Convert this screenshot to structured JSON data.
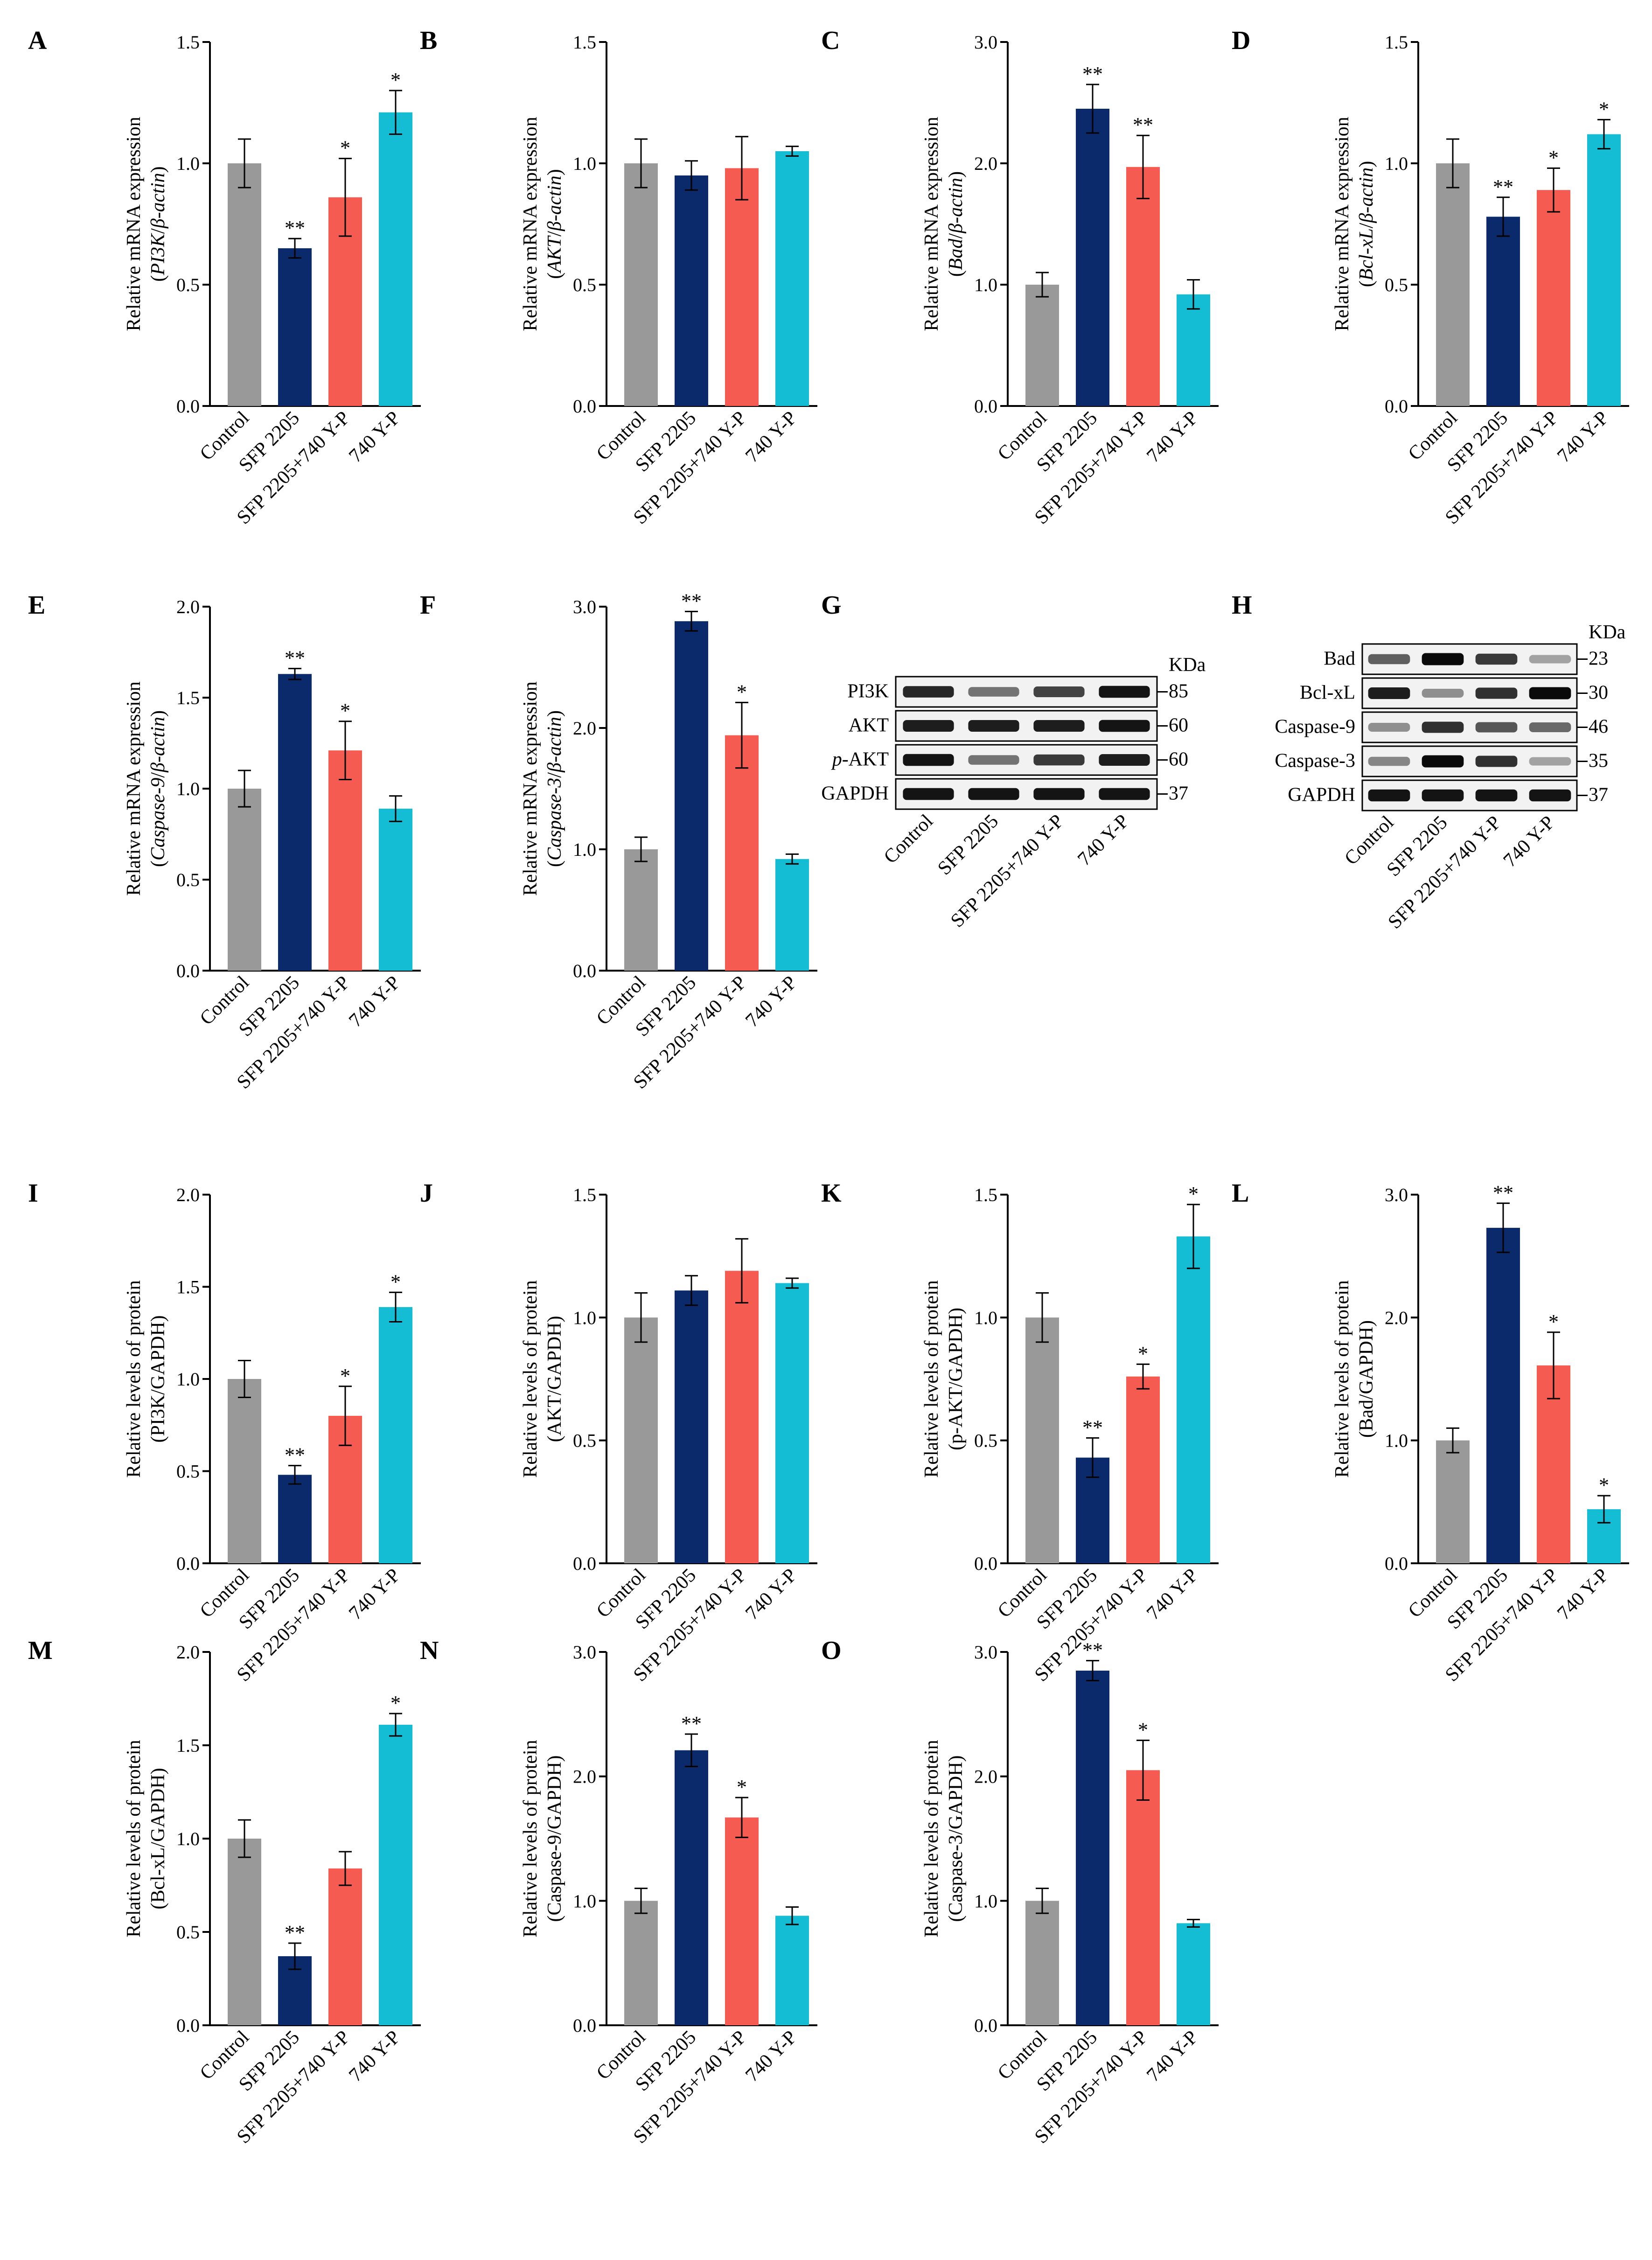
{
  "colors": {
    "Control": "#999999",
    "SFP 2205": "#0b2a6b",
    "SFP 2205+740 Y-P": "#f55b51",
    "740 Y-P": "#14bcd4",
    "axis": "#000000"
  },
  "categories": [
    "Control",
    "SFP 2205",
    "SFP 2205+740 Y-P",
    "740 Y-P"
  ],
  "chart_data": [
    {
      "id": "A",
      "type": "bar",
      "ylabel_line1": "Relative mRNA expression",
      "ylabel_line2": "(PI3K/β-actin)",
      "ylim": [
        0,
        1.5
      ],
      "ticks": [
        "0.0",
        "0.5",
        "1.0",
        "1.5"
      ],
      "categories": [
        "Control",
        "SFP 2205",
        "SFP 2205+740 Y-P",
        "740 Y-P"
      ],
      "values": [
        1.0,
        0.65,
        0.86,
        1.21
      ],
      "errors": [
        0.1,
        0.04,
        0.16,
        0.09
      ],
      "sig": [
        "",
        "**",
        "*",
        "*"
      ]
    },
    {
      "id": "B",
      "type": "bar",
      "ylabel_line1": "Relative mRNA expression",
      "ylabel_line2": "(AKT/β-actin)",
      "ylim": [
        0,
        1.5
      ],
      "ticks": [
        "0.0",
        "0.5",
        "1.0",
        "1.5"
      ],
      "categories": [
        "Control",
        "SFP 2205",
        "SFP 2205+740 Y-P",
        "740 Y-P"
      ],
      "values": [
        1.0,
        0.95,
        0.98,
        1.05
      ],
      "errors": [
        0.1,
        0.06,
        0.13,
        0.02
      ],
      "sig": [
        "",
        "",
        "",
        ""
      ]
    },
    {
      "id": "C",
      "type": "bar",
      "ylabel_line1": "Relative mRNA expression",
      "ylabel_line2": "(Bad/β-actin)",
      "ylim": [
        0,
        3.0
      ],
      "ticks": [
        "0.0",
        "1.0",
        "2.0",
        "3.0"
      ],
      "categories": [
        "Control",
        "SFP 2205",
        "SFP 2205+740 Y-P",
        "740 Y-P"
      ],
      "values": [
        1.0,
        2.45,
        1.97,
        0.92
      ],
      "errors": [
        0.1,
        0.2,
        0.26,
        0.12
      ],
      "sig": [
        "",
        "**",
        "**",
        ""
      ]
    },
    {
      "id": "D",
      "type": "bar",
      "ylabel_line1": "Relative mRNA expression",
      "ylabel_line2": "(Bcl-xL/β-actin)",
      "ylim": [
        0,
        1.5
      ],
      "ticks": [
        "0.0",
        "0.5",
        "1.0",
        "1.5"
      ],
      "categories": [
        "Control",
        "SFP 2205",
        "SFP 2205+740 Y-P",
        "740 Y-P"
      ],
      "values": [
        1.0,
        0.78,
        0.89,
        1.12
      ],
      "errors": [
        0.1,
        0.08,
        0.09,
        0.06
      ],
      "sig": [
        "",
        "**",
        "*",
        "*"
      ]
    },
    {
      "id": "E",
      "type": "bar",
      "ylabel_line1": "Relative mRNA expression",
      "ylabel_line2": "(Caspase-9/β-actin)",
      "ylim": [
        0,
        2.0
      ],
      "ticks": [
        "0.0",
        "0.5",
        "1.0",
        "1.5",
        "2.0"
      ],
      "categories": [
        "Control",
        "SFP 2205",
        "SFP 2205+740 Y-P",
        "740 Y-P"
      ],
      "values": [
        1.0,
        1.63,
        1.21,
        0.89
      ],
      "errors": [
        0.1,
        0.03,
        0.16,
        0.07
      ],
      "sig": [
        "",
        "**",
        "*",
        ""
      ]
    },
    {
      "id": "F",
      "type": "bar",
      "ylabel_line1": "Relative mRNA expression",
      "ylabel_line2": "(Caspase-3/β-actin)",
      "ylim": [
        0,
        3.0
      ],
      "ticks": [
        "0.0",
        "1.0",
        "2.0",
        "3.0"
      ],
      "categories": [
        "Control",
        "SFP 2205",
        "SFP 2205+740 Y-P",
        "740 Y-P"
      ],
      "values": [
        1.0,
        2.88,
        1.94,
        0.92
      ],
      "errors": [
        0.1,
        0.08,
        0.27,
        0.04
      ],
      "sig": [
        "",
        "**",
        "*",
        ""
      ]
    },
    {
      "id": "I",
      "type": "bar",
      "ylabel_line1": "Relative levels of protein",
      "ylabel_line2": "(PI3K/GAPDH)",
      "ylim": [
        0,
        2.0
      ],
      "ticks": [
        "0.0",
        "0.5",
        "1.0",
        "1.5",
        "2.0"
      ],
      "categories": [
        "Control",
        "SFP 2205",
        "SFP 2205+740 Y-P",
        "740 Y-P"
      ],
      "values": [
        1.0,
        0.48,
        0.8,
        1.39
      ],
      "errors": [
        0.1,
        0.05,
        0.16,
        0.08
      ],
      "sig": [
        "",
        "**",
        "*",
        "*"
      ]
    },
    {
      "id": "J",
      "type": "bar",
      "ylabel_line1": "Relative levels of protein",
      "ylabel_line2": "(AKT/GAPDH)",
      "ylim": [
        0,
        1.5
      ],
      "ticks": [
        "0.0",
        "0.5",
        "1.0",
        "1.5"
      ],
      "categories": [
        "Control",
        "SFP 2205",
        "SFP 2205+740 Y-P",
        "740 Y-P"
      ],
      "values": [
        1.0,
        1.11,
        1.19,
        1.14
      ],
      "errors": [
        0.1,
        0.06,
        0.13,
        0.02
      ],
      "sig": [
        "",
        "",
        "",
        ""
      ]
    },
    {
      "id": "K",
      "type": "bar",
      "ylabel_line1": "Relative levels of protein",
      "ylabel_line2": "(p-AKT/GAPDH)",
      "ylim": [
        0,
        1.5
      ],
      "ticks": [
        "0.0",
        "0.5",
        "1.0",
        "1.5"
      ],
      "categories": [
        "Control",
        "SFP 2205",
        "SFP 2205+740 Y-P",
        "740 Y-P"
      ],
      "values": [
        1.0,
        0.43,
        0.76,
        1.33
      ],
      "errors": [
        0.1,
        0.08,
        0.05,
        0.13
      ],
      "sig": [
        "",
        "**",
        "*",
        "*"
      ]
    },
    {
      "id": "L",
      "type": "bar",
      "ylabel_line1": "Relative levels of protein",
      "ylabel_line2": "(Bad/GAPDH)",
      "ylim": [
        0,
        3.0
      ],
      "ticks": [
        "0.0",
        "1.0",
        "2.0",
        "3.0"
      ],
      "categories": [
        "Control",
        "SFP 2205",
        "SFP 2205+740 Y-P",
        "740 Y-P"
      ],
      "values": [
        1.0,
        2.73,
        1.61,
        0.44
      ],
      "errors": [
        0.1,
        0.2,
        0.27,
        0.11
      ],
      "sig": [
        "",
        "**",
        "*",
        "*"
      ]
    },
    {
      "id": "M",
      "type": "bar",
      "ylabel_line1": "Relative levels of protein",
      "ylabel_line2": "(Bcl-xL/GAPDH)",
      "ylim": [
        0,
        2.0
      ],
      "ticks": [
        "0.0",
        "0.5",
        "1.0",
        "1.5",
        "2.0"
      ],
      "categories": [
        "Control",
        "SFP 2205",
        "SFP 2205+740 Y-P",
        "740 Y-P"
      ],
      "values": [
        1.0,
        0.37,
        0.84,
        1.61
      ],
      "errors": [
        0.1,
        0.07,
        0.09,
        0.06
      ],
      "sig": [
        "",
        "**",
        "",
        "*"
      ]
    },
    {
      "id": "N",
      "type": "bar",
      "ylabel_line1": "Relative levels of protein",
      "ylabel_line2": "(Caspase-9/GAPDH)",
      "ylim": [
        0,
        3.0
      ],
      "ticks": [
        "0.0",
        "1.0",
        "2.0",
        "3.0"
      ],
      "categories": [
        "Control",
        "SFP 2205",
        "SFP 2205+740 Y-P",
        "740 Y-P"
      ],
      "values": [
        1.0,
        2.21,
        1.67,
        0.88
      ],
      "errors": [
        0.1,
        0.13,
        0.16,
        0.07
      ],
      "sig": [
        "",
        "**",
        "*",
        ""
      ]
    },
    {
      "id": "O",
      "type": "bar",
      "ylabel_line1": "Relative levels of protein",
      "ylabel_line2": "(Caspase-3/GAPDH)",
      "ylim": [
        0,
        3.0
      ],
      "ticks": [
        "0.0",
        "1.0",
        "2.0",
        "3.0"
      ],
      "categories": [
        "Control",
        "SFP 2205",
        "SFP 2205+740 Y-P",
        "740 Y-P"
      ],
      "values": [
        1.0,
        2.85,
        2.05,
        0.82
      ],
      "errors": [
        0.1,
        0.08,
        0.24,
        0.03
      ],
      "sig": [
        "",
        "**",
        "*",
        ""
      ]
    }
  ],
  "blots": [
    {
      "id": "G",
      "kda_label": "KDa",
      "categories": [
        "Control",
        "SFP 2205",
        "SFP 2205+740 Y-P",
        "740 Y-P"
      ],
      "rows": [
        {
          "label": "PI3K",
          "kda": "85",
          "intensity": [
            0.85,
            0.45,
            0.7,
            0.95
          ]
        },
        {
          "label": "AKT",
          "kda": "60",
          "intensity": [
            0.9,
            0.9,
            0.9,
            0.95
          ]
        },
        {
          "label": "p-AKT",
          "kda": "60",
          "intensity": [
            0.95,
            0.45,
            0.75,
            0.9
          ]
        },
        {
          "label": "GAPDH",
          "kda": "37",
          "intensity": [
            0.95,
            0.95,
            0.95,
            0.95
          ]
        }
      ]
    },
    {
      "id": "H",
      "kda_label": "KDa",
      "categories": [
        "Control",
        "SFP 2205",
        "SFP 2205+740 Y-P",
        "740 Y-P"
      ],
      "rows": [
        {
          "label": "Bad",
          "kda": "23",
          "intensity": [
            0.55,
            1.0,
            0.75,
            0.2
          ]
        },
        {
          "label": "Bcl-xL",
          "kda": "30",
          "intensity": [
            0.9,
            0.3,
            0.8,
            1.0
          ]
        },
        {
          "label": "Caspase-9",
          "kda": "46",
          "intensity": [
            0.3,
            0.8,
            0.6,
            0.5
          ]
        },
        {
          "label": "Caspase-3",
          "kda": "35",
          "intensity": [
            0.35,
            1.0,
            0.8,
            0.2
          ]
        },
        {
          "label": "GAPDH",
          "kda": "37",
          "intensity": [
            0.95,
            0.95,
            0.95,
            0.95
          ]
        }
      ]
    }
  ]
}
